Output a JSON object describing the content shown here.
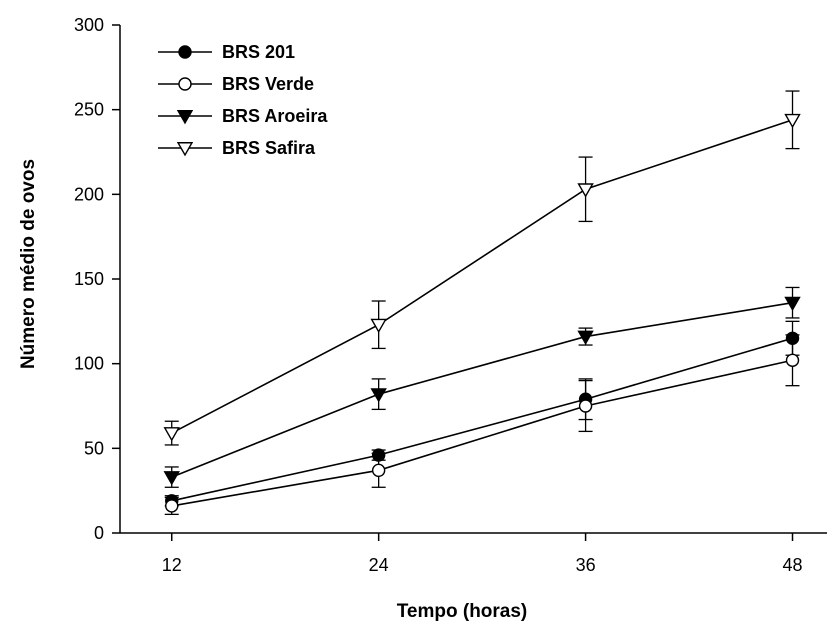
{
  "chart_data": {
    "type": "line",
    "xlabel": "Tempo (horas)",
    "ylabel": "Número médio de ovos",
    "x": [
      12,
      24,
      36,
      48
    ],
    "xticks": [
      "12",
      "24",
      "36",
      "48"
    ],
    "yticks": [
      "0",
      "50",
      "100",
      "150",
      "200",
      "250",
      "300"
    ],
    "ylim": [
      0,
      300
    ],
    "legend_position": "top-left",
    "grid": false,
    "series": [
      {
        "name": "BRS 201",
        "marker": "filled-circle",
        "values": [
          19,
          46,
          79,
          115
        ],
        "errors": [
          3,
          3,
          12,
          10
        ]
      },
      {
        "name": "BRS Verde",
        "marker": "open-circle",
        "values": [
          16,
          37,
          75,
          102
        ],
        "errors": [
          5,
          10,
          15,
          15
        ]
      },
      {
        "name": "BRS Aroeira",
        "marker": "filled-triangle-down",
        "values": [
          33,
          82,
          116,
          136
        ],
        "errors": [
          6,
          9,
          5,
          9
        ]
      },
      {
        "name": "BRS Safira",
        "marker": "open-triangle-down",
        "values": [
          59,
          123,
          203,
          244
        ],
        "errors": [
          7,
          14,
          19,
          17
        ]
      }
    ]
  }
}
